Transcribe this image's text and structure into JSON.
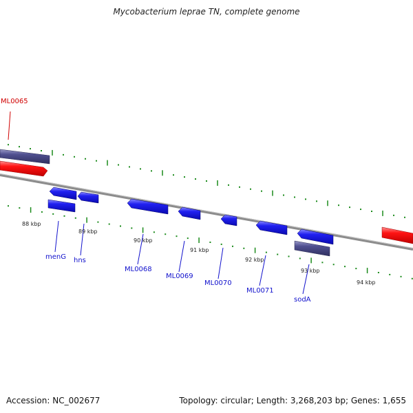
{
  "title": "Mycobacterium leprae TN, complete genome",
  "footer": {
    "accession": "Accession: NC_002677",
    "stats": "Topology: circular; Length: 3,268,203 bp; Genes: 1,655"
  },
  "colors": {
    "backbone": "#888888",
    "gene_forward_red": "#ff1010",
    "gene_blue": "#1010ee",
    "gene_purple": "#484884",
    "tick_green": "#1a8a1a",
    "label_red": "#d00000",
    "label_blue": "#1010cc",
    "kbp_text": "#222222"
  },
  "scale_labels": [
    "88 kbp",
    "89 kbp",
    "90 kbp",
    "91 kbp",
    "92 kbp",
    "93 kbp",
    "94 kbp"
  ],
  "gene_labels": [
    "ML0065",
    "menG",
    "hns",
    "ML0068",
    "ML0069",
    "ML0070",
    "ML0071",
    "sodA"
  ]
}
